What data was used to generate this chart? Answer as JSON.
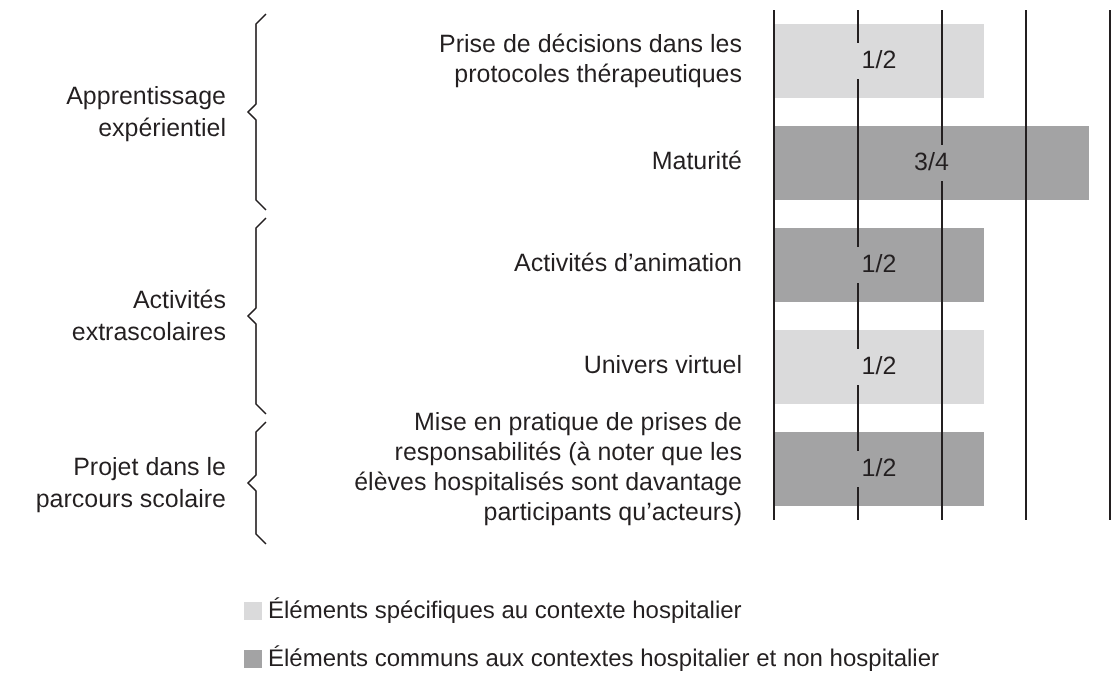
{
  "chart_data": {
    "type": "bar",
    "orientation": "horizontal",
    "stacked": true,
    "categories": [
      "Prise de décisions dans les protocoles thérapeutiques",
      "Maturité",
      "Activités d’animation",
      "Univers virtuel",
      "Mise en pratique de prises de responsabilités (à noter que les élèves hospitalisés sont davantage participants qu’acteurs)"
    ],
    "series": [
      {
        "name": "Éléments spécifiques au contexte hospitalier",
        "color": "#dadadb",
        "values": [
          0.5,
          null,
          null,
          0.5,
          null
        ],
        "value_labels": [
          "1/2",
          null,
          null,
          "1/2",
          null
        ]
      },
      {
        "name": "Éléments communs aux contextes hospitalier et non hospitalier",
        "color": "#a3a3a4",
        "values": [
          null,
          0.75,
          0.5,
          null,
          0.5
        ],
        "value_labels": [
          null,
          "3/4",
          "1/2",
          null,
          "1/2"
        ]
      }
    ],
    "xlim": [
      0,
      0.8
    ],
    "xticks": [
      {
        "value": 0.2,
        "label": null
      },
      {
        "value": 0.4,
        "label": null
      },
      {
        "value": 0.6,
        "label": null
      },
      {
        "value": 0.8,
        "label": null
      }
    ],
    "tick_labels": "y",
    "grid": "x",
    "legend": "bottom",
    "annotations": [
      "Apprentissage expérientiel",
      "Activités extrascolaires",
      "Projet dans le parcours scolaire"
    ]
  }
}
